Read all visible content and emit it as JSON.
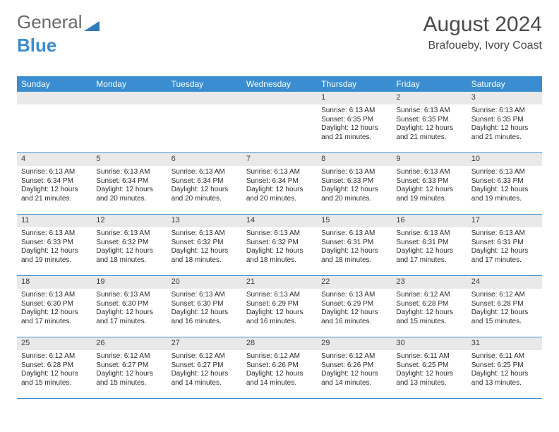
{
  "logo": {
    "text_general": "General",
    "text_blue": "Blue",
    "shape_color": "#2f79bd"
  },
  "header": {
    "month_title": "August 2024",
    "location": "Brafoueby, Ivory Coast"
  },
  "colors": {
    "header_bg": "#3a8dd0",
    "header_text": "#ffffff",
    "daynum_bg": "#e9e9e9",
    "body_text": "#2b2b2b",
    "divider": "#3a8dd0",
    "title_text": "#4a4a4a"
  },
  "day_names": [
    "Sunday",
    "Monday",
    "Tuesday",
    "Wednesday",
    "Thursday",
    "Friday",
    "Saturday"
  ],
  "weeks": [
    [
      {
        "empty": true
      },
      {
        "empty": true
      },
      {
        "empty": true
      },
      {
        "empty": true
      },
      {
        "day": "1",
        "sunrise": "Sunrise: 6:13 AM",
        "sunset": "Sunset: 6:35 PM",
        "daylight": "Daylight: 12 hours and 21 minutes."
      },
      {
        "day": "2",
        "sunrise": "Sunrise: 6:13 AM",
        "sunset": "Sunset: 6:35 PM",
        "daylight": "Daylight: 12 hours and 21 minutes."
      },
      {
        "day": "3",
        "sunrise": "Sunrise: 6:13 AM",
        "sunset": "Sunset: 6:35 PM",
        "daylight": "Daylight: 12 hours and 21 minutes."
      }
    ],
    [
      {
        "day": "4",
        "sunrise": "Sunrise: 6:13 AM",
        "sunset": "Sunset: 6:34 PM",
        "daylight": "Daylight: 12 hours and 21 minutes."
      },
      {
        "day": "5",
        "sunrise": "Sunrise: 6:13 AM",
        "sunset": "Sunset: 6:34 PM",
        "daylight": "Daylight: 12 hours and 20 minutes."
      },
      {
        "day": "6",
        "sunrise": "Sunrise: 6:13 AM",
        "sunset": "Sunset: 6:34 PM",
        "daylight": "Daylight: 12 hours and 20 minutes."
      },
      {
        "day": "7",
        "sunrise": "Sunrise: 6:13 AM",
        "sunset": "Sunset: 6:34 PM",
        "daylight": "Daylight: 12 hours and 20 minutes."
      },
      {
        "day": "8",
        "sunrise": "Sunrise: 6:13 AM",
        "sunset": "Sunset: 6:33 PM",
        "daylight": "Daylight: 12 hours and 20 minutes."
      },
      {
        "day": "9",
        "sunrise": "Sunrise: 6:13 AM",
        "sunset": "Sunset: 6:33 PM",
        "daylight": "Daylight: 12 hours and 19 minutes."
      },
      {
        "day": "10",
        "sunrise": "Sunrise: 6:13 AM",
        "sunset": "Sunset: 6:33 PM",
        "daylight": "Daylight: 12 hours and 19 minutes."
      }
    ],
    [
      {
        "day": "11",
        "sunrise": "Sunrise: 6:13 AM",
        "sunset": "Sunset: 6:33 PM",
        "daylight": "Daylight: 12 hours and 19 minutes."
      },
      {
        "day": "12",
        "sunrise": "Sunrise: 6:13 AM",
        "sunset": "Sunset: 6:32 PM",
        "daylight": "Daylight: 12 hours and 18 minutes."
      },
      {
        "day": "13",
        "sunrise": "Sunrise: 6:13 AM",
        "sunset": "Sunset: 6:32 PM",
        "daylight": "Daylight: 12 hours and 18 minutes."
      },
      {
        "day": "14",
        "sunrise": "Sunrise: 6:13 AM",
        "sunset": "Sunset: 6:32 PM",
        "daylight": "Daylight: 12 hours and 18 minutes."
      },
      {
        "day": "15",
        "sunrise": "Sunrise: 6:13 AM",
        "sunset": "Sunset: 6:31 PM",
        "daylight": "Daylight: 12 hours and 18 minutes."
      },
      {
        "day": "16",
        "sunrise": "Sunrise: 6:13 AM",
        "sunset": "Sunset: 6:31 PM",
        "daylight": "Daylight: 12 hours and 17 minutes."
      },
      {
        "day": "17",
        "sunrise": "Sunrise: 6:13 AM",
        "sunset": "Sunset: 6:31 PM",
        "daylight": "Daylight: 12 hours and 17 minutes."
      }
    ],
    [
      {
        "day": "18",
        "sunrise": "Sunrise: 6:13 AM",
        "sunset": "Sunset: 6:30 PM",
        "daylight": "Daylight: 12 hours and 17 minutes."
      },
      {
        "day": "19",
        "sunrise": "Sunrise: 6:13 AM",
        "sunset": "Sunset: 6:30 PM",
        "daylight": "Daylight: 12 hours and 17 minutes."
      },
      {
        "day": "20",
        "sunrise": "Sunrise: 6:13 AM",
        "sunset": "Sunset: 6:30 PM",
        "daylight": "Daylight: 12 hours and 16 minutes."
      },
      {
        "day": "21",
        "sunrise": "Sunrise: 6:13 AM",
        "sunset": "Sunset: 6:29 PM",
        "daylight": "Daylight: 12 hours and 16 minutes."
      },
      {
        "day": "22",
        "sunrise": "Sunrise: 6:13 AM",
        "sunset": "Sunset: 6:29 PM",
        "daylight": "Daylight: 12 hours and 16 minutes."
      },
      {
        "day": "23",
        "sunrise": "Sunrise: 6:12 AM",
        "sunset": "Sunset: 6:28 PM",
        "daylight": "Daylight: 12 hours and 15 minutes."
      },
      {
        "day": "24",
        "sunrise": "Sunrise: 6:12 AM",
        "sunset": "Sunset: 6:28 PM",
        "daylight": "Daylight: 12 hours and 15 minutes."
      }
    ],
    [
      {
        "day": "25",
        "sunrise": "Sunrise: 6:12 AM",
        "sunset": "Sunset: 6:28 PM",
        "daylight": "Daylight: 12 hours and 15 minutes."
      },
      {
        "day": "26",
        "sunrise": "Sunrise: 6:12 AM",
        "sunset": "Sunset: 6:27 PM",
        "daylight": "Daylight: 12 hours and 15 minutes."
      },
      {
        "day": "27",
        "sunrise": "Sunrise: 6:12 AM",
        "sunset": "Sunset: 6:27 PM",
        "daylight": "Daylight: 12 hours and 14 minutes."
      },
      {
        "day": "28",
        "sunrise": "Sunrise: 6:12 AM",
        "sunset": "Sunset: 6:26 PM",
        "daylight": "Daylight: 12 hours and 14 minutes."
      },
      {
        "day": "29",
        "sunrise": "Sunrise: 6:12 AM",
        "sunset": "Sunset: 6:26 PM",
        "daylight": "Daylight: 12 hours and 14 minutes."
      },
      {
        "day": "30",
        "sunrise": "Sunrise: 6:11 AM",
        "sunset": "Sunset: 6:25 PM",
        "daylight": "Daylight: 12 hours and 13 minutes."
      },
      {
        "day": "31",
        "sunrise": "Sunrise: 6:11 AM",
        "sunset": "Sunset: 6:25 PM",
        "daylight": "Daylight: 12 hours and 13 minutes."
      }
    ]
  ]
}
